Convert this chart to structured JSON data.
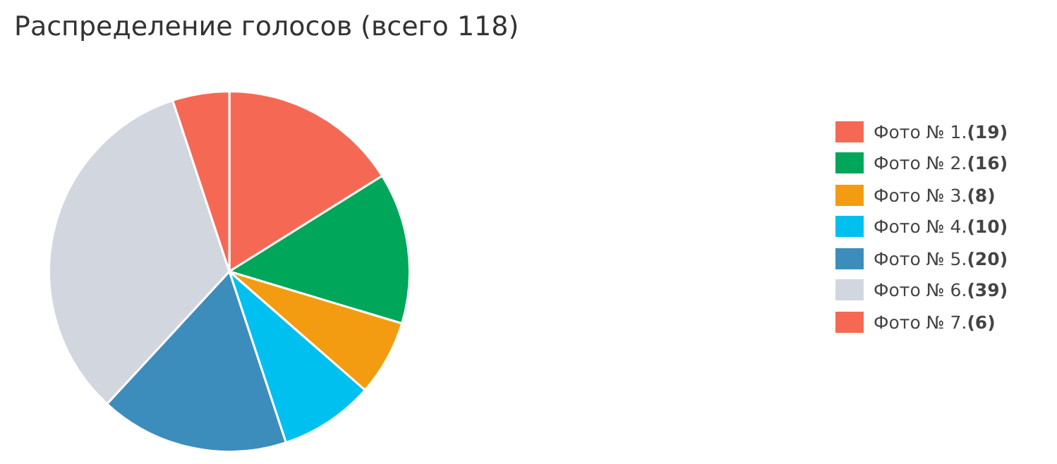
{
  "chart_data": {
    "type": "pie",
    "title": "Распределение голосов (всего 118)",
    "categories": [
      "Фото № 1.",
      "Фото № 2.",
      "Фото № 3.",
      "Фото № 4.",
      "Фото № 5.",
      "Фото № 6.",
      "Фото № 7."
    ],
    "values": [
      19,
      16,
      8,
      10,
      20,
      39,
      6
    ],
    "value_labels": [
      "(19)",
      "(16)",
      "(8)",
      "(10)",
      "(20)",
      "(39)",
      "(6)"
    ],
    "colors": [
      "#f56954",
      "#00a65a",
      "#f39c12",
      "#00c0ef",
      "#3c8dbc",
      "#d2d6de",
      "#f56954"
    ],
    "legend": "right"
  }
}
